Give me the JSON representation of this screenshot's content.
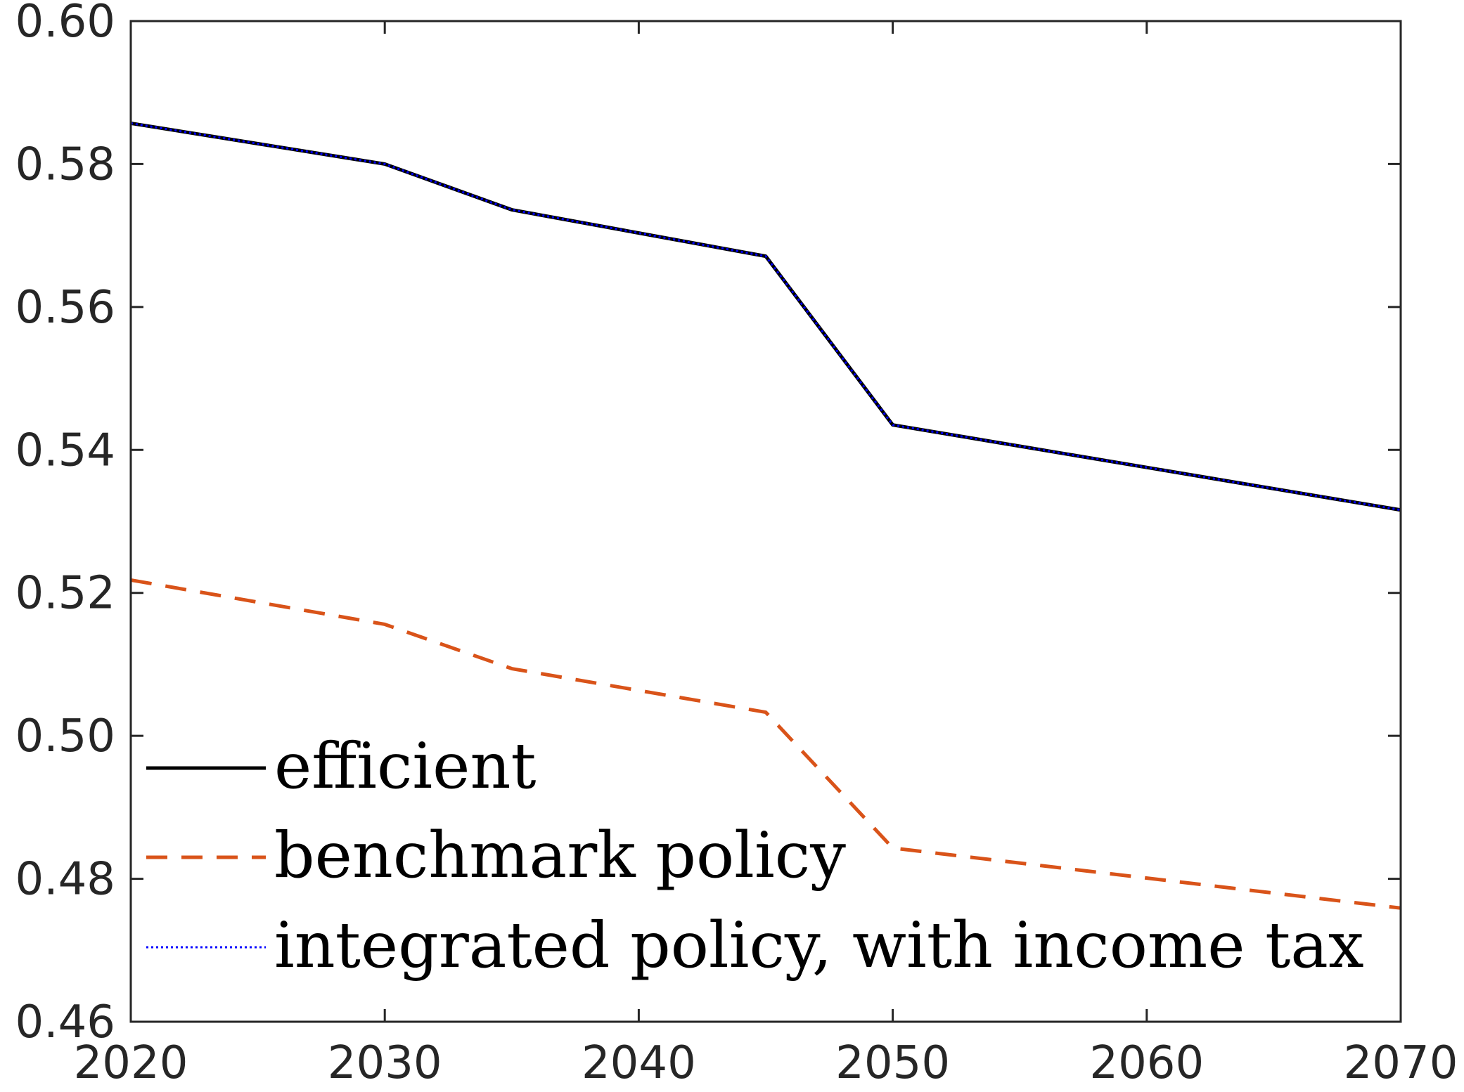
{
  "chart_data": {
    "type": "line",
    "title": "",
    "xlabel": "",
    "ylabel": "",
    "xlim": [
      2020,
      2070
    ],
    "ylim": [
      0.46,
      0.6
    ],
    "xticks": [
      2020,
      2030,
      2040,
      2050,
      2060,
      2070
    ],
    "xtick_labels": [
      "2020",
      "2030",
      "2040",
      "2050",
      "2060",
      "2070"
    ],
    "yticks": [
      0.46,
      0.48,
      0.5,
      0.52,
      0.54,
      0.56,
      0.58,
      0.6
    ],
    "ytick_labels": [
      "0.46",
      "0.48",
      "0.50",
      "0.52",
      "0.54",
      "0.56",
      "0.58",
      "0.60"
    ],
    "grid": false,
    "legend_position": "bottom-left",
    "series": [
      {
        "name": "efficient",
        "color": "#000000",
        "style": "solid",
        "x": [
          2020,
          2030,
          2035,
          2045,
          2050,
          2070
        ],
        "y": [
          0.5857,
          0.58,
          0.5736,
          0.5671,
          0.5435,
          0.5316
        ]
      },
      {
        "name": "benchmark policy",
        "color": "#D95319",
        "style": "dashed",
        "x": [
          2020,
          2030,
          2035,
          2045,
          2050,
          2070
        ],
        "y": [
          0.5218,
          0.5156,
          0.5094,
          0.5033,
          0.4843,
          0.4759
        ]
      },
      {
        "name": "integrated policy, with income tax",
        "color": "#0000FF",
        "style": "dotted",
        "x": [
          2020,
          2030,
          2035,
          2045,
          2050,
          2070
        ],
        "y": [
          0.5857,
          0.58,
          0.5736,
          0.5671,
          0.5435,
          0.5316
        ]
      }
    ]
  }
}
